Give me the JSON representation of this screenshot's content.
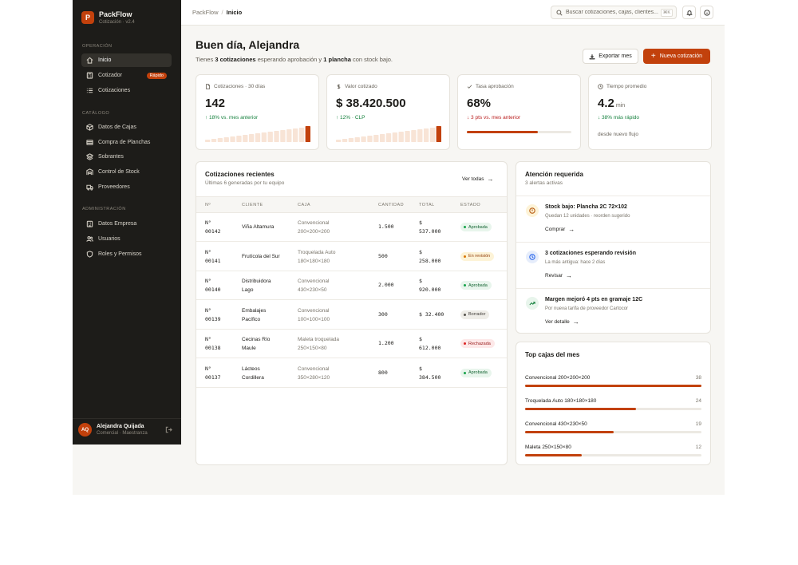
{
  "app": {
    "name": "PackFlow",
    "subtitle": "Cotización · v2.4",
    "logo_letter": "P",
    "accent": "#c2410c"
  },
  "sidebar": {
    "sections": [
      {
        "title": "OPERACIÓN",
        "items": [
          {
            "label": "Inicio",
            "icon": "home-icon",
            "active": true
          },
          {
            "label": "Cotizador",
            "icon": "calculator-icon",
            "badge": "Rápido"
          },
          {
            "label": "Cotizaciones",
            "icon": "list-icon"
          }
        ]
      },
      {
        "title": "CATÁLOGO",
        "items": [
          {
            "label": "Datos de Cajas",
            "icon": "box-icon"
          },
          {
            "label": "Compra de Planchas",
            "icon": "sheet-icon"
          },
          {
            "label": "Sobrantes",
            "icon": "layers-icon"
          },
          {
            "label": "Control de Stock",
            "icon": "warehouse-icon"
          },
          {
            "label": "Proveedores",
            "icon": "truck-icon"
          }
        ]
      },
      {
        "title": "ADMINISTRACIÓN",
        "items": [
          {
            "label": "Datos Empresa",
            "icon": "building-icon"
          },
          {
            "label": "Usuarios",
            "icon": "users-icon"
          },
          {
            "label": "Roles y Permisos",
            "icon": "shield-icon"
          }
        ]
      }
    ],
    "user": {
      "initials": "AQ",
      "name": "Alejandra Quijada",
      "role": "Comercial · Maestranza"
    }
  },
  "topbar": {
    "breadcrumb": [
      "PackFlow",
      "Inicio"
    ],
    "search_placeholder": "Buscar cotizaciones, cajas, clientes...",
    "shortcut": "⌘K"
  },
  "greeting": {
    "title": "Buen día, Alejandra",
    "sub_prefix": "Tienes ",
    "sub_bold1": "3 cotizaciones",
    "sub_mid": " esperando aprobación y ",
    "sub_bold2": "1 plancha",
    "sub_suffix": " con stock bajo."
  },
  "actions": {
    "export": "Exportar mes",
    "new": "Nueva cotización"
  },
  "kpis": [
    {
      "label": "Cotizaciones · 30 días",
      "icon": "document-icon",
      "value": "142",
      "delta": "↑ 18% vs. mes anterior",
      "trend": "up",
      "spark": [
        0.15,
        0.2,
        0.25,
        0.3,
        0.35,
        0.4,
        0.45,
        0.5,
        0.55,
        0.6,
        0.65,
        0.7,
        0.75,
        0.8,
        0.85,
        0.9,
        1.0
      ]
    },
    {
      "label": "Valor cotizado",
      "icon": "dollar-icon",
      "value": "$ 38.420.500",
      "delta": "↑ 12% · CLP",
      "trend": "up",
      "spark": [
        0.15,
        0.2,
        0.25,
        0.3,
        0.35,
        0.4,
        0.45,
        0.5,
        0.55,
        0.6,
        0.65,
        0.7,
        0.75,
        0.8,
        0.85,
        0.9,
        1.0
      ]
    },
    {
      "label": "Tasa aprobación",
      "icon": "check-icon",
      "value": "68%",
      "delta": "↓ 3 pts vs. mes anterior",
      "trend": "down",
      "progress": 0.68
    },
    {
      "label": "Tiempo promedio",
      "icon": "clock-icon",
      "value": "4.2",
      "unit": "min",
      "delta": "↓ 38% más rápido",
      "trend": "up",
      "footnote": "desde nuevo flujo"
    }
  ],
  "recent": {
    "title": "Cotizaciones recientes",
    "subtitle": "Últimas 6 generadas por tu equipo",
    "link": "Ver todas",
    "columns": [
      "Nº",
      "CLIENTE",
      "CAJA",
      "CANTIDAD",
      "TOTAL",
      "ESTADO"
    ],
    "rows": [
      {
        "num1": "N°",
        "num2": "00142",
        "client1": "Viña Altamura",
        "client2": "",
        "box1": "Convencional",
        "box2": "200×200×200",
        "qty": "1.500",
        "total1": "$",
        "total2": "537.000",
        "status": "Aprobada",
        "kind": "ok"
      },
      {
        "num1": "N°",
        "num2": "00141",
        "client1": "Frutícola del Sur",
        "client2": "",
        "box1": "Troquelada Auto",
        "box2": "180×180×180",
        "qty": "500",
        "total1": "$",
        "total2": "258.000",
        "status": "En revisión",
        "kind": "rev"
      },
      {
        "num1": "N°",
        "num2": "00140",
        "client1": "Distribuidora",
        "client2": "Lago",
        "box1": "Convencional",
        "box2": "430×230×50",
        "qty": "2.000",
        "total1": "$",
        "total2": "920.000",
        "status": "Aprobada",
        "kind": "ok"
      },
      {
        "num1": "N°",
        "num2": "00139",
        "client1": "Embalajes",
        "client2": "Pacífico",
        "box1": "Convencional",
        "box2": "100×100×100",
        "qty": "300",
        "total1": "$ 32.400",
        "total2": "",
        "status": "Borrador",
        "kind": "draft"
      },
      {
        "num1": "N°",
        "num2": "00138",
        "client1": "Cecinas Río",
        "client2": "Maule",
        "box1": "Maleta troquelada",
        "box2": "250×150×80",
        "qty": "1.200",
        "total1": "$",
        "total2": "612.000",
        "status": "Rechazada",
        "kind": "rej"
      },
      {
        "num1": "N°",
        "num2": "00137",
        "client1": "Lácteos",
        "client2": "Cordillera",
        "box1": "Convencional",
        "box2": "350×280×120",
        "qty": "800",
        "total1": "$",
        "total2": "384.500",
        "status": "Aprobada",
        "kind": "ok"
      }
    ]
  },
  "attention": {
    "title": "Atención requerida",
    "subtitle": "3 alertas activas",
    "alerts": [
      {
        "title": "Stock bajo: Plancha 2C 72×102",
        "desc": "Quedan 12 unidades · reorden sugerido",
        "link": "Comprar",
        "icon": "alert-icon",
        "bg": "#fdf3d7",
        "color": "#b45309"
      },
      {
        "title": "3 cotizaciones esperando revisión",
        "desc": "La más antigua: hace 2 días",
        "link": "Revisar",
        "icon": "clock-icon",
        "bg": "#e6edfb",
        "color": "#2563eb"
      },
      {
        "title": "Margen mejoró 4 pts en gramaje 12C",
        "desc": "Por nueva tarifa de proveedor Cartocor",
        "link": "Ver detalle",
        "icon": "trend-up-icon",
        "bg": "#e8f5ec",
        "color": "#15803d"
      }
    ]
  },
  "top_boxes": {
    "title": "Top cajas del mes",
    "items": [
      {
        "name": "Convencional 200×200×200",
        "count": "38",
        "fraction": 1.0
      },
      {
        "name": "Troquelada Auto 180×180×180",
        "count": "24",
        "fraction": 0.63
      },
      {
        "name": "Convencional 430×230×50",
        "count": "19",
        "fraction": 0.5
      },
      {
        "name": "Maleta 250×150×80",
        "count": "12",
        "fraction": 0.32
      }
    ]
  }
}
